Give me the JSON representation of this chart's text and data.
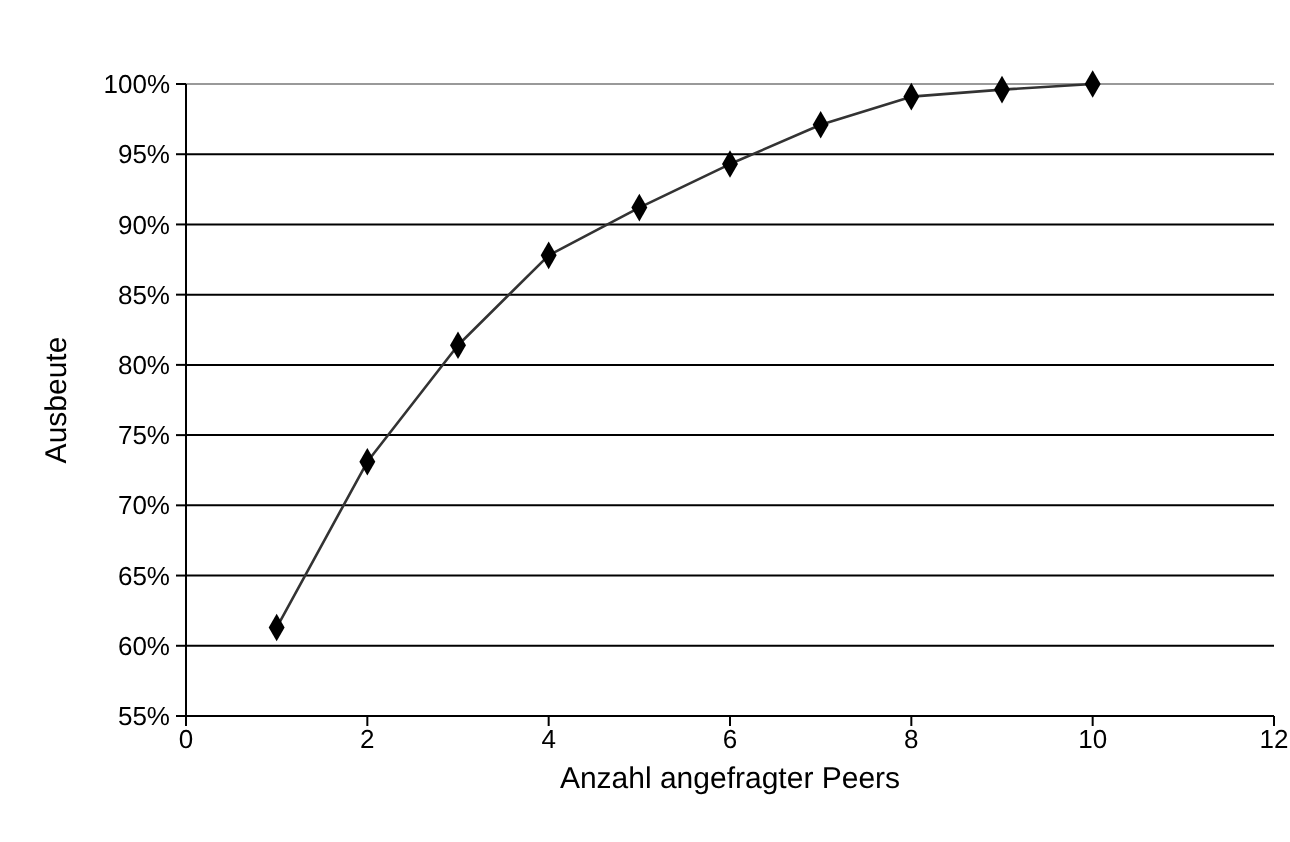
{
  "chart_data": {
    "type": "line",
    "xlabel": "Anzahl angefragter Peers",
    "ylabel": "Ausbeute",
    "x": [
      1,
      2,
      3,
      4,
      5,
      6,
      7,
      8,
      9,
      10
    ],
    "series": [
      {
        "color": "#000000",
        "values": [
          61.3,
          73.1,
          81.4,
          87.8,
          91.2,
          94.3,
          97.1,
          99.1,
          99.6,
          100
        ]
      }
    ],
    "xlim": [
      0,
      12
    ],
    "xticks": [
      0,
      2,
      4,
      6,
      8,
      10,
      12
    ],
    "ylim": [
      55,
      100
    ],
    "yticks": [
      {
        "value": 55,
        "label": "55%"
      },
      {
        "value": 60,
        "label": "60%"
      },
      {
        "value": 65,
        "label": "65%"
      },
      {
        "value": 70,
        "label": "70%"
      },
      {
        "value": 75,
        "label": "75%"
      },
      {
        "value": 80,
        "label": "80%"
      },
      {
        "value": 85,
        "label": "85%"
      },
      {
        "value": 90,
        "label": "90%"
      },
      {
        "value": 95,
        "label": "95%"
      },
      {
        "value": 100,
        "label": "100%"
      }
    ],
    "grid": "y",
    "marker": "diamond",
    "line_style": "solid"
  }
}
